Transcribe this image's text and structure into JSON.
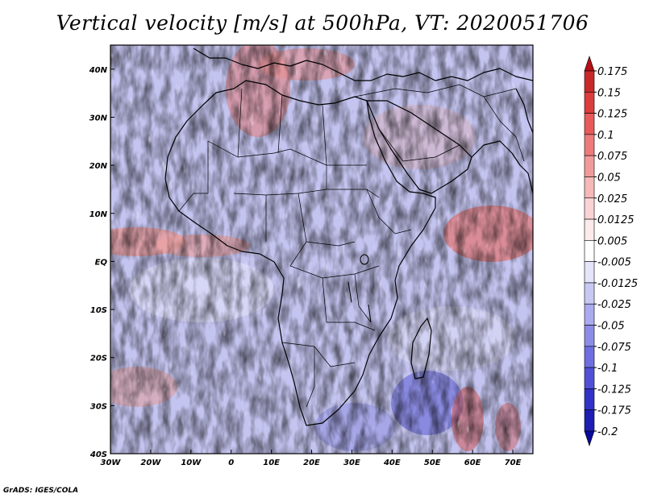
{
  "title": "Vertical velocity [m/s] at 500hPa, VT: 2020051706",
  "credit": "GrADS: IGES/COLA",
  "map": {
    "lon_range": [
      -30,
      75
    ],
    "lat_range": [
      -40,
      45
    ],
    "x_tick_labels": [
      "30W",
      "20W",
      "10W",
      "0",
      "10E",
      "20E",
      "30E",
      "40E",
      "50E",
      "60E",
      "70E"
    ],
    "y_tick_labels": [
      "40S",
      "30S",
      "20S",
      "10S",
      "EQ",
      "10N",
      "20N",
      "30N",
      "40N"
    ]
  },
  "colorbar": {
    "labels": [
      "0.175",
      "0.15",
      "0.125",
      "0.1",
      "0.075",
      "0.05",
      "0.025",
      "0.0125",
      "0.005",
      "-0.005",
      "-0.0125",
      "-0.025",
      "-0.05",
      "-0.075",
      "-0.1",
      "-0.125",
      "-0.175",
      "-0.2"
    ],
    "colors": [
      "#b40f14",
      "#c8282a",
      "#dc3c3c",
      "#e85a5a",
      "#ee7a7a",
      "#f29a9a",
      "#f6b8b8",
      "#fad4d4",
      "#fdeaea",
      "#ffffff",
      "#e4e4fb",
      "#c8c8f5",
      "#aaaaef",
      "#8c8ce8",
      "#6e6ee0",
      "#5050d6",
      "#3232c8",
      "#1e1eb4",
      "#0a0a9a"
    ]
  }
}
